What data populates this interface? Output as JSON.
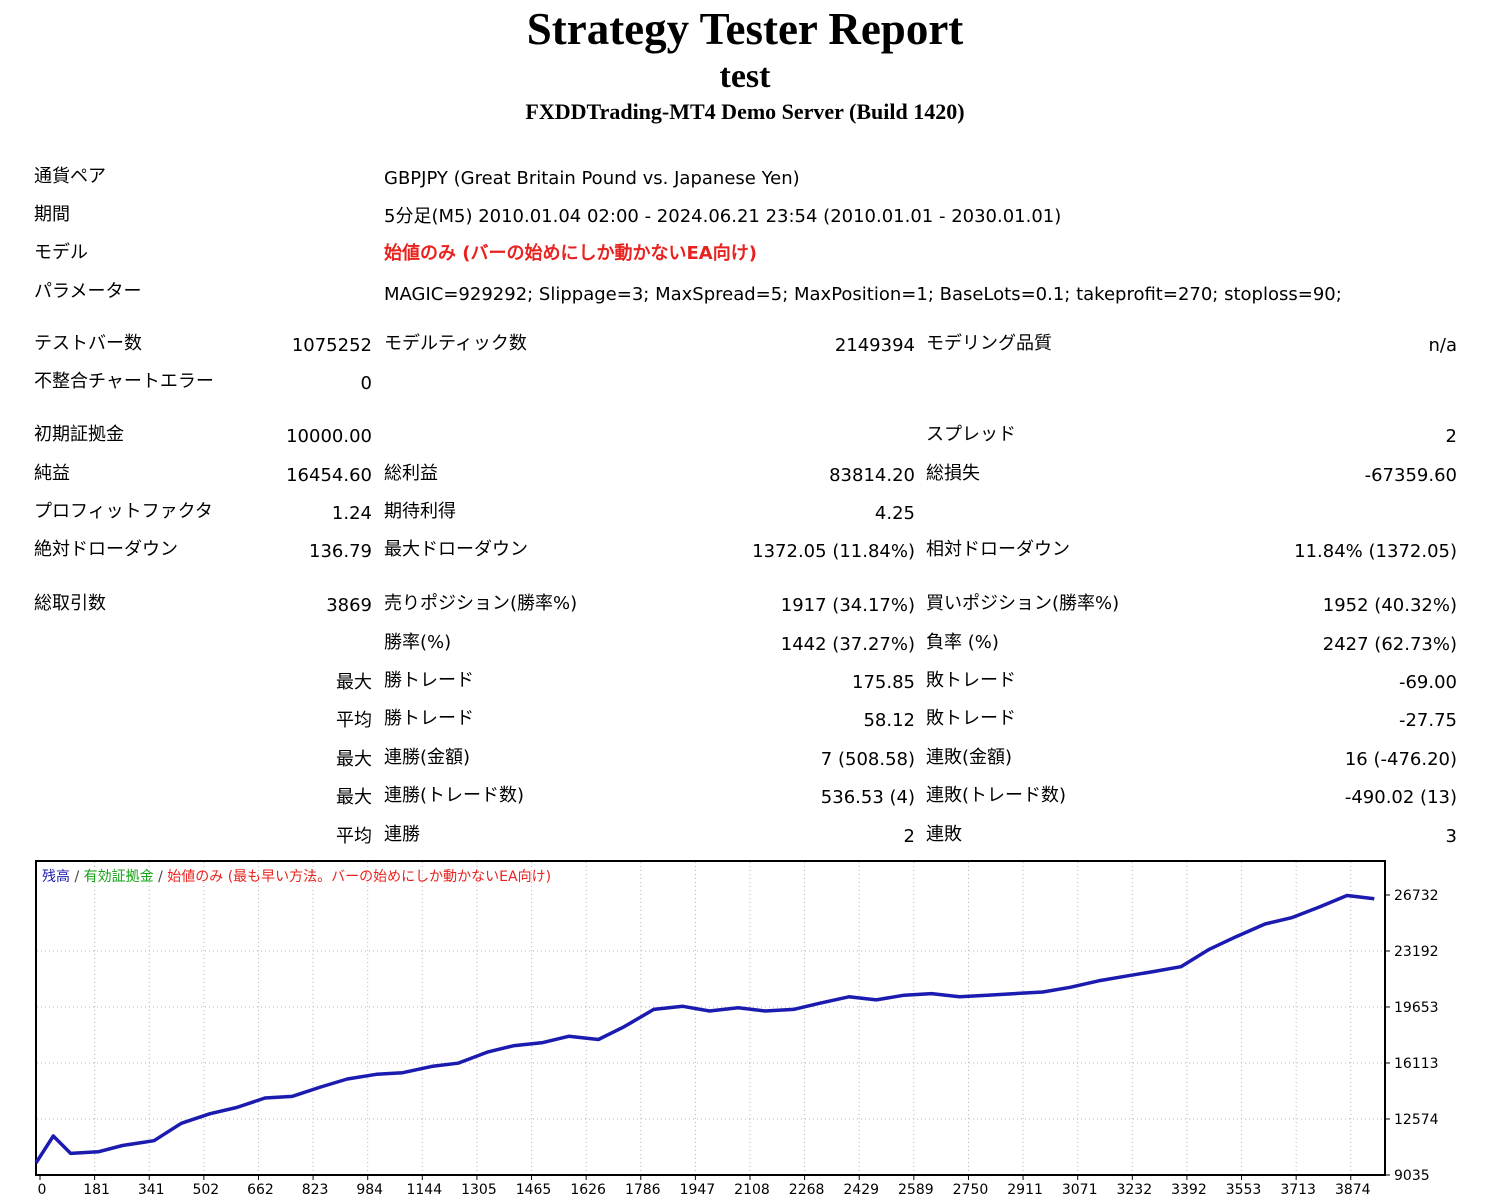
{
  "header": {
    "title": "Strategy Tester Report",
    "subtitle": "test",
    "server": "FXDDTrading-MT4 Demo Server (Build 1420)"
  },
  "info": [
    {
      "label": "通貨ペア",
      "value": "GBPJPY (Great Britain Pound vs. Japanese Yen)"
    },
    {
      "label": "期間",
      "value": "5分足(M5) 2010.01.04 02:00 - 2024.06.21 23:54 (2010.01.01 - 2030.01.01)"
    },
    {
      "label": "モデル",
      "value": "始値のみ (バーの始めにしか動かないEA向け)"
    },
    {
      "label": "パラメーター",
      "value": "MAGIC=929292; Slippage=3; MaxSpread=5; MaxPosition=1; BaseLots=0.1; takeprofit=270; stoploss=90;"
    }
  ],
  "stats": [
    {
      "l1": "テストバー数",
      "v1": "1075252",
      "l2": "モデルティック数",
      "v2": "2149394",
      "l3": "モデリング品質",
      "v3": "n/a"
    },
    {
      "l1": "不整合チャートエラー",
      "v1": "0",
      "l2": "",
      "v2": "",
      "l3": "",
      "v3": ""
    },
    {
      "l1": "初期証拠金",
      "v1": "10000.00",
      "l2": "",
      "v2": "",
      "l3": "スプレッド",
      "v3": "2"
    },
    {
      "l1": "純益",
      "v1": "16454.60",
      "l2": "総利益",
      "v2": "83814.20",
      "l3": "総損失",
      "v3": "-67359.60"
    },
    {
      "l1": "プロフィットファクタ",
      "v1": "1.24",
      "l2": "期待利得",
      "v2": "4.25",
      "l3": "",
      "v3": ""
    },
    {
      "l1": "絶対ドローダウン",
      "v1": "136.79",
      "l2": "最大ドローダウン",
      "v2": "1372.05 (11.84%)",
      "l3": "相対ドローダウン",
      "v3": "11.84% (1372.05)"
    },
    {
      "l1": "総取引数",
      "v1": "3869",
      "l2": "売りポジション(勝率%)",
      "v2": "1917 (34.17%)",
      "l3": "買いポジション(勝率%)",
      "v3": "1952 (40.32%)"
    },
    {
      "l1": "",
      "v1": "",
      "l2": "勝率(%)",
      "v2": "1442 (37.27%)",
      "l3": "負率 (%)",
      "v3": "2427 (62.73%)"
    },
    {
      "l1": "",
      "v1": "最大",
      "l2": "勝トレード",
      "v2": "175.85",
      "l3": "敗トレード",
      "v3": "-69.00"
    },
    {
      "l1": "",
      "v1": "平均",
      "l2": "勝トレード",
      "v2": "58.12",
      "l3": "敗トレード",
      "v3": "-27.75"
    },
    {
      "l1": "",
      "v1": "最大",
      "l2": "連勝(金額)",
      "v2": "7 (508.58)",
      "l3": "連敗(金額)",
      "v3": "16 (-476.20)"
    },
    {
      "l1": "",
      "v1": "最大",
      "l2": "連勝(トレード数)",
      "v2": "536.53 (4)",
      "l3": "連敗(トレード数)",
      "v3": "-490.02 (13)"
    },
    {
      "l1": "",
      "v1": "平均",
      "l2": "連勝",
      "v2": "2",
      "l3": "連敗",
      "v3": "3"
    }
  ],
  "chart_data": {
    "type": "line",
    "legend": [
      {
        "text": "残高",
        "color": "#1b1bb0"
      },
      {
        "text": " / ",
        "color": "#444444"
      },
      {
        "text": "有効証拠金",
        "color": "#13a113"
      },
      {
        "text": " / ",
        "color": "#444444"
      },
      {
        "text": "始値のみ (最も早い方法。バーの始めにしか動かないEA向け)",
        "color": "#e8231f"
      }
    ],
    "series": [
      {
        "color": "#1b1bb0",
        "x": [
          0,
          50,
          100,
          180,
          250,
          341,
          420,
          502,
          580,
          662,
          740,
          823,
          900,
          984,
          1060,
          1144,
          1220,
          1305,
          1380,
          1465,
          1540,
          1626,
          1700,
          1786,
          1870,
          1947,
          2030,
          2108,
          2190,
          2268,
          2350,
          2429,
          2510,
          2589,
          2670,
          2750,
          2830,
          2911,
          2990,
          3071,
          3150,
          3232,
          3310,
          3392,
          3470,
          3553,
          3630,
          3713,
          3790,
          3869
        ],
        "y": [
          9800,
          11500,
          10400,
          10500,
          10900,
          11200,
          12300,
          12900,
          13300,
          13900,
          14000,
          14600,
          15100,
          15400,
          15500,
          15900,
          16100,
          16800,
          17200,
          17400,
          17800,
          17600,
          18400,
          19500,
          19700,
          19400,
          19600,
          19400,
          19500,
          19900,
          20300,
          20100,
          20400,
          20500,
          20300,
          20400,
          20500,
          20600,
          20900,
          21300,
          21600,
          21900,
          22200,
          23300,
          24100,
          24900,
          25300,
          26000,
          26700,
          26500
        ]
      }
    ],
    "x_ticks": [
      "0",
      "181",
      "341",
      "502",
      "662",
      "823",
      "984",
      "1144",
      "1305",
      "1465",
      "1626",
      "1786",
      "1947",
      "2108",
      "2268",
      "2429",
      "2589",
      "2750",
      "2911",
      "3071",
      "3232",
      "3392",
      "3553",
      "3713",
      "3874"
    ],
    "y_ticks": [
      "26732",
      "23192",
      "19653",
      "16113",
      "12574",
      "9035"
    ],
    "xlim": [
      0,
      3900
    ],
    "ylim": [
      9035,
      26732
    ],
    "grid": true
  }
}
